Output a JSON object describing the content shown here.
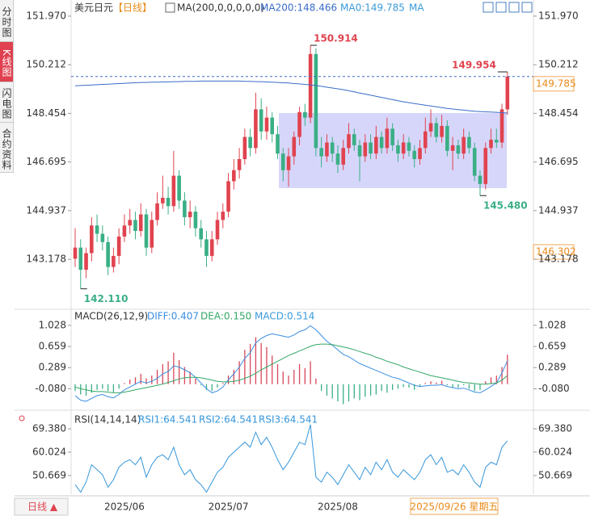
{
  "sidebar": [
    "分时图",
    "K线图",
    "闪电图",
    "合约资料"
  ],
  "header": {
    "symbol": "美元日元",
    "period": "【日线】",
    "ma_params": "MA(200,0,0,0,0,0)",
    "ma200": "MA200:148.466",
    "ma0": "MA0:149.785",
    "ma": "MA"
  },
  "period_button": "日线 ▲",
  "cursor_date": "2025/09/26 星期五",
  "cursor_price": "146.302",
  "chart_data": [
    {
      "type": "candlestick",
      "categories": [
        null,
        null,
        null,
        null,
        null,
        null,
        null,
        null,
        null,
        "2025/06",
        null,
        null,
        null,
        null,
        null,
        null,
        null,
        null,
        null,
        null,
        null,
        null,
        null,
        null,
        null,
        null,
        null,
        null,
        "2025/07",
        null,
        null,
        null,
        null,
        null,
        null,
        null,
        null,
        null,
        null,
        null,
        null,
        null,
        null,
        null,
        null,
        null,
        null,
        null,
        "2025/08",
        null,
        null,
        null,
        null,
        null,
        null,
        null,
        null,
        null,
        null,
        null,
        null,
        null,
        null,
        null,
        null,
        null,
        null,
        null,
        null,
        null,
        null,
        null,
        null,
        null,
        null,
        null,
        null,
        null,
        null,
        null
      ],
      "ohlc": [
        [
          143.2,
          144.3,
          142.9,
          143.6
        ],
        [
          143.6,
          143.9,
          142.11,
          142.8
        ],
        [
          142.8,
          143.6,
          142.5,
          143.4
        ],
        [
          143.4,
          144.7,
          143.1,
          144.4
        ],
        [
          144.4,
          144.8,
          143.8,
          144.1
        ],
        [
          144.1,
          144.4,
          143.5,
          143.8
        ],
        [
          143.8,
          144.0,
          142.6,
          142.9
        ],
        [
          142.9,
          143.6,
          142.7,
          143.3
        ],
        [
          143.3,
          144.3,
          143.0,
          144.0
        ],
        [
          144.0,
          144.8,
          143.8,
          144.4
        ],
        [
          144.4,
          145.0,
          144.1,
          144.6
        ],
        [
          144.6,
          144.9,
          143.9,
          144.2
        ],
        [
          144.2,
          145.2,
          144.0,
          144.8
        ],
        [
          144.8,
          145.0,
          143.3,
          143.6
        ],
        [
          143.6,
          144.9,
          143.4,
          144.6
        ],
        [
          144.6,
          145.6,
          144.4,
          145.2
        ],
        [
          145.2,
          146.2,
          145.0,
          145.4
        ],
        [
          145.4,
          145.8,
          144.8,
          145.1
        ],
        [
          145.1,
          147.1,
          144.9,
          146.2
        ],
        [
          146.2,
          146.4,
          145.0,
          145.3
        ],
        [
          145.3,
          145.6,
          144.4,
          144.7
        ],
        [
          144.7,
          145.3,
          144.3,
          144.9
        ],
        [
          144.9,
          145.1,
          144.0,
          144.3
        ],
        [
          144.3,
          144.6,
          143.6,
          143.9
        ],
        [
          143.9,
          144.2,
          142.9,
          143.3
        ],
        [
          143.3,
          144.2,
          143.1,
          143.9
        ],
        [
          143.9,
          144.9,
          143.7,
          144.6
        ],
        [
          144.6,
          145.2,
          144.3,
          144.9
        ],
        [
          144.9,
          146.3,
          144.7,
          146.0
        ],
        [
          146.0,
          146.8,
          145.7,
          146.4
        ],
        [
          146.4,
          147.2,
          146.1,
          146.8
        ],
        [
          146.8,
          147.9,
          146.6,
          147.6
        ],
        [
          147.6,
          147.9,
          146.9,
          147.2
        ],
        [
          147.2,
          149.2,
          147.0,
          148.6
        ],
        [
          148.6,
          149.0,
          147.5,
          147.8
        ],
        [
          147.8,
          148.7,
          147.5,
          148.3
        ],
        [
          148.3,
          148.5,
          147.4,
          147.7
        ],
        [
          147.7,
          148.0,
          146.8,
          147.0
        ],
        [
          147.0,
          147.2,
          146.0,
          146.4
        ],
        [
          146.4,
          147.2,
          145.8,
          146.9
        ],
        [
          146.9,
          147.8,
          146.6,
          147.6
        ],
        [
          147.6,
          148.7,
          147.3,
          148.5
        ],
        [
          148.5,
          148.8,
          148.0,
          148.3
        ],
        [
          148.3,
          150.914,
          148.1,
          150.6
        ],
        [
          150.6,
          150.8,
          146.9,
          147.2
        ],
        [
          147.2,
          147.6,
          146.5,
          146.9
        ],
        [
          146.9,
          147.7,
          146.7,
          147.4
        ],
        [
          147.4,
          147.6,
          146.7,
          147.0
        ],
        [
          147.0,
          147.3,
          146.3,
          146.6
        ],
        [
          146.6,
          147.5,
          146.4,
          147.2
        ],
        [
          147.2,
          148.1,
          147.0,
          147.7
        ],
        [
          147.7,
          147.9,
          147.1,
          147.3
        ],
        [
          147.3,
          147.5,
          146.0,
          146.9
        ],
        [
          146.9,
          147.7,
          146.7,
          147.4
        ],
        [
          147.4,
          147.7,
          146.8,
          147.0
        ],
        [
          147.0,
          148.0,
          146.8,
          147.6
        ],
        [
          147.6,
          147.8,
          147.0,
          147.2
        ],
        [
          147.2,
          148.3,
          147.0,
          147.9
        ],
        [
          147.9,
          148.1,
          147.1,
          147.3
        ],
        [
          147.3,
          147.5,
          146.7,
          147.0
        ],
        [
          147.0,
          147.7,
          146.8,
          147.4
        ],
        [
          147.4,
          147.6,
          146.9,
          147.1
        ],
        [
          147.1,
          147.3,
          146.5,
          146.8
        ],
        [
          146.8,
          147.5,
          146.6,
          147.2
        ],
        [
          147.2,
          148.3,
          147.0,
          147.8
        ],
        [
          147.8,
          148.6,
          147.6,
          148.1
        ],
        [
          148.1,
          148.3,
          147.4,
          147.6
        ],
        [
          147.6,
          148.4,
          147.4,
          148.0
        ],
        [
          148.0,
          148.2,
          146.9,
          147.1
        ],
        [
          147.1,
          147.6,
          146.4,
          147.3
        ],
        [
          147.3,
          147.5,
          146.8,
          147.0
        ],
        [
          147.0,
          147.9,
          146.8,
          147.6
        ],
        [
          147.6,
          147.8,
          147.0,
          147.2
        ],
        [
          147.2,
          147.4,
          146.0,
          146.2
        ],
        [
          146.2,
          146.4,
          145.48,
          145.9
        ],
        [
          145.9,
          147.4,
          145.7,
          147.2
        ],
        [
          147.2,
          147.9,
          147.0,
          147.5
        ],
        [
          147.5,
          147.9,
          147.2,
          147.4
        ],
        [
          147.4,
          148.8,
          147.2,
          148.6
        ],
        [
          148.6,
          149.954,
          148.4,
          149.785
        ]
      ],
      "up_color": "#e0434f",
      "down_color": "#3aaf85",
      "series": [
        {
          "color": "#3a6cc8",
          "values": [
            149.45,
            149.46,
            149.47,
            149.48,
            149.49,
            149.5,
            149.51,
            149.52,
            149.53,
            149.54,
            149.55,
            149.56,
            149.57,
            149.57,
            149.58,
            149.58,
            149.59,
            149.59,
            149.6,
            149.6,
            149.61,
            149.61,
            149.61,
            149.62,
            149.62,
            149.62,
            149.62,
            149.62,
            149.62,
            149.62,
            149.62,
            149.61,
            149.61,
            149.6,
            149.6,
            149.59,
            149.58,
            149.57,
            149.56,
            149.55,
            149.53,
            149.52,
            149.5,
            149.48,
            149.46,
            149.43,
            149.4,
            149.37,
            149.34,
            149.31,
            149.27,
            149.23,
            149.19,
            149.15,
            149.11,
            149.07,
            149.03,
            148.99,
            148.95,
            148.91,
            148.87,
            148.84,
            148.81,
            148.78,
            148.75,
            148.72,
            148.69,
            148.66,
            148.63,
            148.61,
            148.59,
            148.57,
            148.55,
            148.53,
            148.52,
            148.51,
            148.5,
            148.49,
            148.48,
            148.466
          ]
        }
      ],
      "ylim": [
        141.4,
        152.26
      ],
      "yticks": [
        {
          "value": 151.97,
          "label": "151.970"
        },
        150.212,
        148.454,
        146.695,
        144.937,
        143.178
      ],
      "price_line": 149.785,
      "annotations": [
        150.914,
        149.954,
        {
          "value": 145.48,
          "label": "145.480"
        },
        {
          "value": 142.11,
          "label": "142.110"
        }
      ]
    },
    {
      "type": "macd",
      "title": "MACD(26,12,9)",
      "legend": [
        "DIFF:0.407",
        "DEA:0.150",
        "MACD:0.514"
      ],
      "series": [
        {
          "color": "#3a8ee0",
          "values": [
            -0.2,
            -0.28,
            -0.3,
            -0.25,
            -0.2,
            -0.18,
            -0.22,
            -0.24,
            -0.18,
            -0.1,
            -0.05,
            0,
            0.05,
            0.02,
            0.05,
            0.1,
            0.18,
            0.22,
            0.32,
            0.3,
            0.25,
            0.2,
            0.12,
            0.02,
            -0.08,
            -0.15,
            -0.12,
            -0.05,
            0.08,
            0.18,
            0.3,
            0.45,
            0.55,
            0.72,
            0.8,
            0.85,
            0.88,
            0.86,
            0.84,
            0.82,
            0.86,
            0.92,
            0.95,
            1.02,
            0.95,
            0.85,
            0.75,
            0.68,
            0.6,
            0.52,
            0.48,
            0.42,
            0.36,
            0.32,
            0.28,
            0.24,
            0.2,
            0.16,
            0.12,
            0.1,
            0.06,
            0.02,
            -0.02,
            -0.04,
            -0.03,
            -0.02,
            -0.02,
            -0.01,
            -0.04,
            -0.06,
            -0.08,
            -0.07,
            -0.1,
            -0.14,
            -0.15,
            -0.1,
            -0.04,
            0.02,
            0.2,
            0.407
          ]
        },
        {
          "color": "#33a866",
          "values": [
            -0.05,
            -0.08,
            -0.1,
            -0.12,
            -0.13,
            -0.13,
            -0.14,
            -0.15,
            -0.15,
            -0.14,
            -0.12,
            -0.1,
            -0.08,
            -0.06,
            -0.04,
            -0.02,
            0,
            0.03,
            0.06,
            0.09,
            0.11,
            0.12,
            0.12,
            0.11,
            0.09,
            0.07,
            0.05,
            0.04,
            0.04,
            0.05,
            0.07,
            0.1,
            0.14,
            0.19,
            0.25,
            0.3,
            0.35,
            0.4,
            0.45,
            0.5,
            0.54,
            0.58,
            0.62,
            0.66,
            0.69,
            0.7,
            0.7,
            0.69,
            0.67,
            0.65,
            0.63,
            0.6,
            0.57,
            0.54,
            0.51,
            0.47,
            0.44,
            0.4,
            0.37,
            0.34,
            0.3,
            0.27,
            0.24,
            0.21,
            0.18,
            0.15,
            0.13,
            0.11,
            0.09,
            0.07,
            0.05,
            0.03,
            0.02,
            0.01,
            0,
            0,
            0.01,
            0.02,
            0.07,
            0.15
          ]
        },
        {
          "color": "#d9465a",
          "negative_color": "#3aaf85",
          "values": [
            -0.12,
            -0.18,
            -0.2,
            -0.15,
            -0.1,
            -0.08,
            -0.12,
            -0.14,
            -0.08,
            0.02,
            0.08,
            0.12,
            0.18,
            0.1,
            0.15,
            0.25,
            0.35,
            0.4,
            0.55,
            0.42,
            0.3,
            0.22,
            0.1,
            -0.02,
            -0.1,
            -0.12,
            -0.06,
            0.02,
            0.15,
            0.25,
            0.4,
            0.6,
            0.7,
            0.82,
            0.72,
            0.65,
            0.5,
            0.35,
            0.22,
            0.15,
            0.25,
            0.35,
            0.28,
            0.4,
            0.1,
            -0.12,
            -0.2,
            -0.25,
            -0.3,
            -0.35,
            -0.3,
            -0.25,
            -0.28,
            -0.22,
            -0.2,
            -0.18,
            -0.12,
            -0.15,
            -0.1,
            -0.08,
            -0.05,
            -0.06,
            -0.1,
            -0.04,
            0.02,
            0.05,
            0.03,
            0.06,
            -0.02,
            -0.05,
            -0.06,
            -0.02,
            -0.08,
            -0.12,
            -0.1,
            0.05,
            0.12,
            0.15,
            0.3,
            0.514
          ]
        }
      ],
      "ylim": [
        -0.413,
        1.28
      ],
      "yticks": [
        1.028,
        0.659,
        0.289,
        {
          "value": -0.08,
          "label": "-0.080"
        }
      ]
    },
    {
      "type": "line",
      "title": "RSI(14,14,14)",
      "legend": [
        "RSI1:64.541",
        "RSI2:64.541",
        "RSI3:64.541"
      ],
      "series": [
        {
          "color": "#3596db",
          "values": [
            47,
            44,
            48,
            55,
            53,
            51,
            46,
            49,
            54,
            56,
            57,
            55,
            58,
            50,
            55,
            58,
            59,
            57,
            62,
            55,
            51,
            53,
            49,
            47,
            44,
            48,
            52,
            54,
            58,
            60,
            62,
            64,
            62,
            68,
            63,
            66,
            62,
            57,
            53,
            56,
            60,
            64,
            63,
            71,
            50,
            48,
            52,
            50,
            47,
            51,
            55,
            52,
            49,
            54,
            51,
            56,
            53,
            57,
            52,
            50,
            53,
            51,
            49,
            52,
            57,
            59,
            55,
            58,
            52,
            53,
            51,
            55,
            52,
            48,
            46,
            54,
            56,
            55,
            62,
            64.541
          ]
        }
      ],
      "ylim": [
        43.2,
        75.5
      ],
      "yticks": [
        {
          "value": 69.38,
          "label": "69.380"
        },
        60.024,
        50.669
      ]
    }
  ]
}
